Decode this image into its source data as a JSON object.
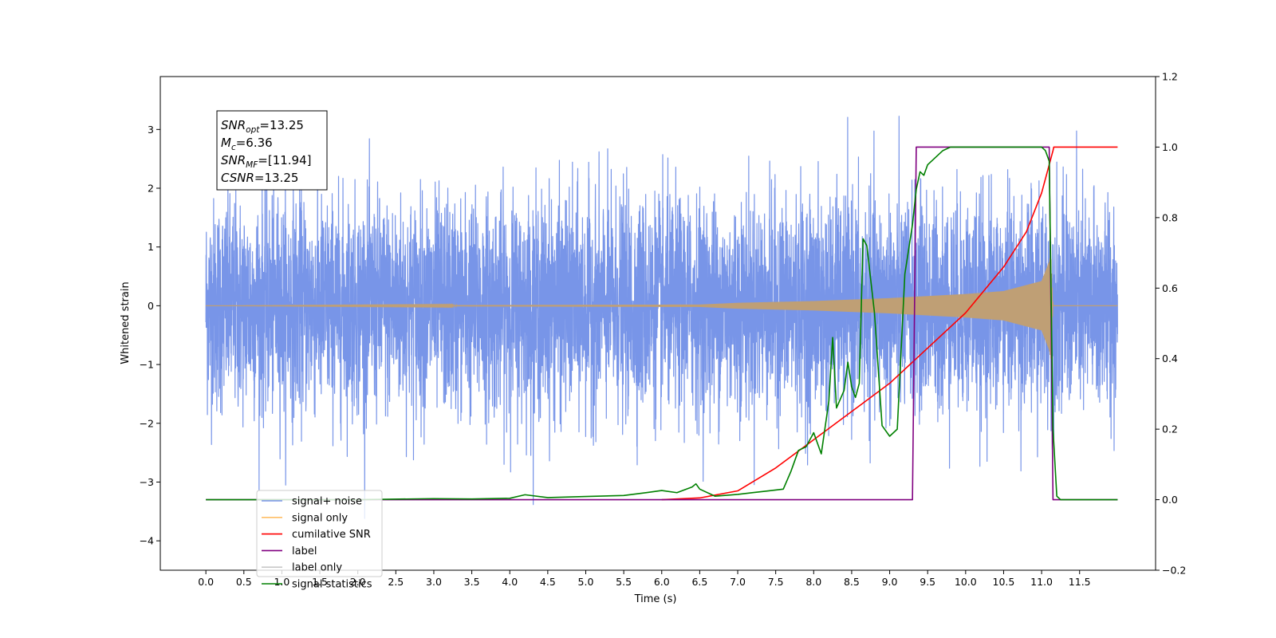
{
  "chart_data": {
    "type": "line",
    "xlabel": "Time (s)",
    "ylabel": "Whitened strain",
    "xlim": [
      -0.6,
      12.5
    ],
    "ylim": [
      -4.5,
      3.9
    ],
    "ylim_right": [
      -0.2,
      1.2
    ],
    "x_ticks": [
      0.0,
      0.5,
      1.0,
      1.5,
      2.0,
      2.5,
      3.0,
      3.5,
      4.0,
      4.5,
      5.0,
      5.5,
      6.0,
      6.5,
      7.0,
      7.5,
      8.0,
      8.5,
      9.0,
      9.5,
      10.0,
      10.5,
      11.0,
      11.5
    ],
    "x_tick_labels": [
      "0.0",
      "0.5",
      "1.0",
      "1.5",
      "2.0",
      "2.5",
      "3.0",
      "3.5",
      "4.0",
      "4.5",
      "5.0",
      "5.5",
      "6.0",
      "6.5",
      "7.0",
      "7.5",
      "8.0",
      "8.5",
      "9.0",
      "9.5",
      "10.0",
      "10.5",
      "11.0",
      "11.5"
    ],
    "y_ticks": [
      3,
      2,
      1,
      0,
      -1,
      -2,
      -3,
      -4
    ],
    "y_tick_labels": [
      "3",
      "2",
      "1",
      "0",
      "−1",
      "−2",
      "−3",
      "−4"
    ],
    "y2_ticks": [
      1.2,
      1.0,
      0.8,
      0.6,
      0.4,
      0.2,
      0.0,
      -0.2
    ],
    "y2_tick_labels": [
      "1.2",
      "1.0",
      "0.8",
      "0.6",
      "0.4",
      "0.2",
      "0.0",
      "−0.2"
    ],
    "grid": false,
    "legend_position": "bottom-left",
    "annotation": {
      "lines": [
        {
          "base": "SNR",
          "sub": "opt",
          "value": "=13.25"
        },
        {
          "base": "M",
          "sub": "c",
          "value": "=6.36"
        },
        {
          "base": "SNR",
          "sub": "MF",
          "value": "=[11.94]"
        },
        {
          "base": "CSNR",
          "sub": "",
          "value": "=13.25"
        }
      ]
    },
    "series": [
      {
        "name": "signal+ noise",
        "axis": "left",
        "color": "#7895e8",
        "style": "noise",
        "x_range": [
          0.0,
          12.0
        ],
        "std": 0.9,
        "y_extent": [
          -3.8,
          3.55
        ]
      },
      {
        "name": "signal only",
        "axis": "left",
        "color": "#bf9f75",
        "style": "chirp",
        "x_range": [
          0.0,
          12.0
        ],
        "envelope": {
          "x": [
            0.0,
            6.5,
            7.0,
            8.0,
            9.0,
            10.0,
            10.5,
            11.0,
            11.1,
            11.12,
            11.15,
            11.2,
            12.0
          ],
          "amp": [
            0.0,
            0.02,
            0.05,
            0.08,
            0.13,
            0.2,
            0.25,
            0.42,
            0.75,
            0.9,
            0.0,
            0.0,
            0.0
          ]
        }
      },
      {
        "name": "cumilative SNR",
        "axis": "right",
        "color": "#ff0000",
        "x": [
          6.0,
          6.5,
          7.0,
          7.5,
          8.0,
          8.5,
          9.0,
          9.5,
          10.0,
          10.5,
          10.8,
          11.0,
          11.1,
          11.15,
          11.16,
          12.0
        ],
        "y": [
          0.0,
          0.005,
          0.025,
          0.09,
          0.17,
          0.25,
          0.33,
          0.43,
          0.53,
          0.66,
          0.76,
          0.87,
          0.95,
          0.99,
          1.0,
          1.0
        ]
      },
      {
        "name": "label",
        "axis": "right",
        "color": "#800080",
        "x": [
          0.0,
          9.3,
          9.35,
          11.1,
          11.15,
          12.0
        ],
        "y": [
          0.0,
          0.0,
          1.0,
          1.0,
          0.0,
          0.0
        ]
      },
      {
        "name": "signal statistics",
        "axis": "right",
        "color": "#008000",
        "x": [
          0.0,
          1.0,
          2.0,
          3.0,
          3.5,
          4.0,
          4.2,
          4.5,
          5.0,
          5.5,
          5.8,
          6.0,
          6.2,
          6.4,
          6.45,
          6.5,
          6.7,
          7.0,
          7.2,
          7.4,
          7.6,
          7.7,
          7.8,
          7.9,
          8.0,
          8.1,
          8.2,
          8.25,
          8.3,
          8.4,
          8.45,
          8.5,
          8.55,
          8.6,
          8.65,
          8.7,
          8.8,
          8.9,
          9.0,
          9.1,
          9.2,
          9.3,
          9.35,
          9.4,
          9.45,
          9.5,
          9.6,
          9.7,
          9.8,
          10.0,
          10.5,
          11.0,
          11.05,
          11.1,
          11.15,
          11.2,
          11.25,
          11.3,
          12.0
        ],
        "y": [
          0.0,
          0.0,
          0.0,
          0.003,
          0.002,
          0.004,
          0.014,
          0.006,
          0.009,
          0.012,
          0.02,
          0.026,
          0.02,
          0.036,
          0.045,
          0.03,
          0.01,
          0.015,
          0.02,
          0.025,
          0.03,
          0.08,
          0.14,
          0.15,
          0.19,
          0.13,
          0.28,
          0.46,
          0.26,
          0.31,
          0.39,
          0.32,
          0.29,
          0.33,
          0.74,
          0.72,
          0.53,
          0.21,
          0.18,
          0.2,
          0.64,
          0.78,
          0.88,
          0.93,
          0.92,
          0.95,
          0.97,
          0.99,
          1.0,
          1.0,
          1.0,
          1.0,
          0.99,
          0.96,
          0.2,
          0.01,
          0.0,
          0.0,
          0.0
        ]
      },
      {
        "name": "label only",
        "axis": "right",
        "color": "#c8c8c8",
        "x": [],
        "y": []
      }
    ]
  }
}
